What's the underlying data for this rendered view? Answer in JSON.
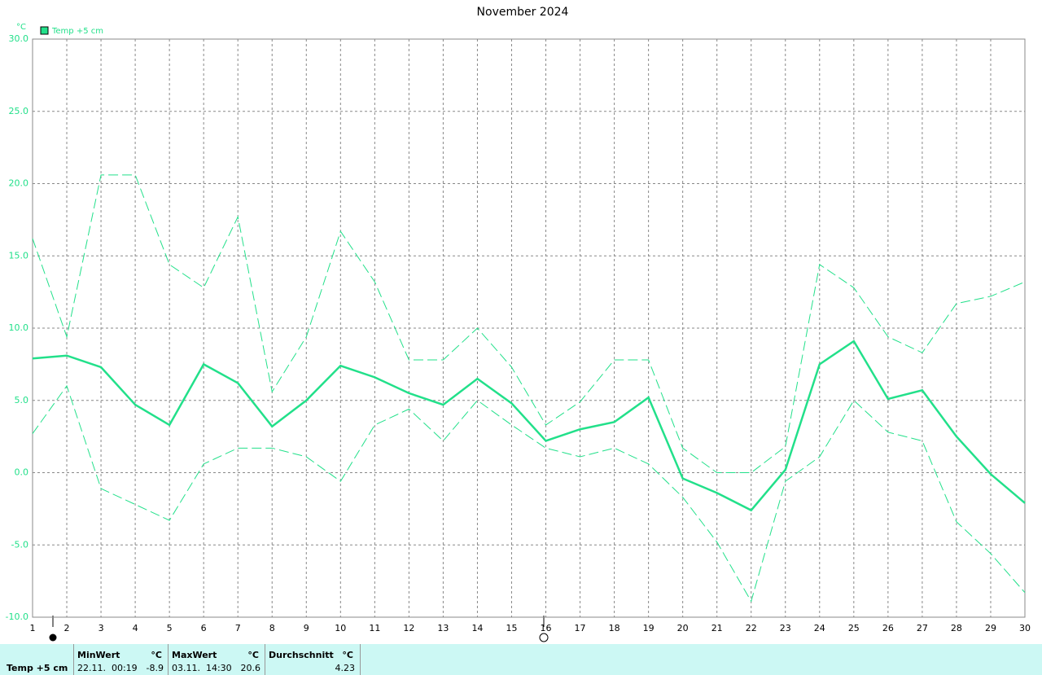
{
  "chart_data": {
    "type": "line",
    "title": "November 2024",
    "y_label": "°C",
    "legend": "top-left",
    "grid": true,
    "x": [
      1,
      2,
      3,
      4,
      5,
      6,
      7,
      8,
      9,
      10,
      11,
      12,
      13,
      14,
      15,
      16,
      17,
      18,
      19,
      20,
      21,
      22,
      23,
      24,
      25,
      26,
      27,
      28,
      29,
      30
    ],
    "xlim": [
      1,
      30
    ],
    "xticks": [
      1,
      2,
      3,
      4,
      5,
      6,
      7,
      8,
      9,
      10,
      11,
      12,
      13,
      14,
      15,
      16,
      17,
      18,
      19,
      20,
      21,
      22,
      23,
      24,
      25,
      26,
      27,
      28,
      29,
      30
    ],
    "ylim": [
      -10,
      30
    ],
    "yticks": [
      {
        "value": -10,
        "label": "-10.0"
      },
      {
        "value": -5,
        "label": "-5.0"
      },
      {
        "value": 0,
        "label": "0.0"
      },
      {
        "value": 5,
        "label": "5.0"
      },
      {
        "value": 10,
        "label": "10.0"
      },
      {
        "value": 15,
        "label": "15.0"
      },
      {
        "value": 20,
        "label": "20.0"
      },
      {
        "value": 25,
        "label": "25.0"
      },
      {
        "value": 30,
        "label": "30.0"
      }
    ],
    "series": [
      {
        "name": "Temp +5 cm",
        "color": "#22e08a",
        "dashed": false,
        "values": [
          7.9,
          8.1,
          7.3,
          4.7,
          3.3,
          7.5,
          6.2,
          3.2,
          5.0,
          7.4,
          6.6,
          5.5,
          4.7,
          6.5,
          4.8,
          2.2,
          3.0,
          3.5,
          5.2,
          -0.4,
          -1.4,
          -2.6,
          0.2,
          7.5,
          9.1,
          5.1,
          5.7,
          2.5,
          -0.1,
          -2.1
        ]
      },
      {
        "color": "#22e08a",
        "dashed": true,
        "values": [
          16.2,
          9.4,
          20.6,
          20.6,
          14.4,
          12.8,
          17.7,
          5.6,
          9.4,
          16.7,
          13.2,
          7.8,
          7.8,
          10.0,
          7.3,
          3.3,
          4.9,
          7.8,
          7.8,
          1.7,
          0.0,
          0.0,
          1.8,
          14.4,
          12.8,
          9.4,
          8.3,
          11.7,
          12.2,
          13.2
        ]
      },
      {
        "color": "#22e08a",
        "dashed": true,
        "values": [
          2.7,
          6.0,
          -1.1,
          -2.2,
          -3.3,
          0.6,
          1.7,
          1.7,
          1.1,
          -0.6,
          3.3,
          4.4,
          2.2,
          5.0,
          3.3,
          1.7,
          1.1,
          1.7,
          0.6,
          -1.7,
          -4.8,
          -8.9,
          -0.6,
          1.1,
          5.0,
          2.8,
          2.2,
          -3.4,
          -5.6,
          -8.3
        ]
      }
    ]
  },
  "stats": {
    "label": "Temp +5 cm",
    "groups": [
      {
        "title": "MinWert",
        "unit": "°C",
        "when": "22.11.  00:19",
        "value": "-8.9"
      },
      {
        "title": "MaxWert",
        "unit": "°C",
        "when": "03.11.  14:30",
        "value": "20.6"
      },
      {
        "title": "Durchschnitt",
        "unit": "°C",
        "when": "",
        "value": "4.23"
      }
    ]
  }
}
